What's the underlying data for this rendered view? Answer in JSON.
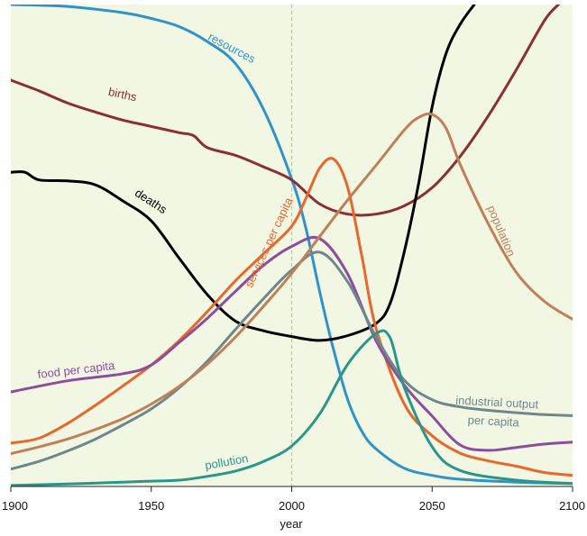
{
  "chart_data": {
    "type": "line",
    "xlabel": "year",
    "ylabel": "",
    "xlim": [
      1900,
      2100
    ],
    "ylim": [
      0,
      100
    ],
    "x_ticks": [
      "1900",
      "1950",
      "2000",
      "2050",
      "2100"
    ],
    "reference_line_x": 2000,
    "grid": false,
    "background_color": "#f2f7e4",
    "series": [
      {
        "name": "resources",
        "color": "#2f93c9",
        "points": [
          [
            1900,
            100
          ],
          [
            1920,
            99.6
          ],
          [
            1940,
            98.3
          ],
          [
            1950,
            97.1
          ],
          [
            1960,
            95.4
          ],
          [
            1970,
            92.3
          ],
          [
            1980,
            87.7
          ],
          [
            1990,
            78.2
          ],
          [
            2000,
            63.8
          ],
          [
            2005,
            53.7
          ],
          [
            2010,
            40.3
          ],
          [
            2015,
            28.2
          ],
          [
            2020,
            17.9
          ],
          [
            2025,
            11.4
          ],
          [
            2030,
            7.8
          ],
          [
            2040,
            3.8
          ],
          [
            2050,
            2.3
          ],
          [
            2060,
            1.5
          ],
          [
            2080,
            0.9
          ],
          [
            2100,
            0.6
          ]
        ]
      },
      {
        "name": "births",
        "color": "#8b2e35",
        "points": [
          [
            1900,
            84.3
          ],
          [
            1910,
            82.1
          ],
          [
            1920,
            79.6
          ],
          [
            1930,
            77.7
          ],
          [
            1940,
            76.0
          ],
          [
            1950,
            74.7
          ],
          [
            1960,
            73.4
          ],
          [
            1965,
            72.8
          ],
          [
            1970,
            70.3
          ],
          [
            1980,
            68.7
          ],
          [
            1990,
            66.3
          ],
          [
            2000,
            63.6
          ],
          [
            2010,
            58.6
          ],
          [
            2020,
            56.5
          ],
          [
            2030,
            56.5
          ],
          [
            2040,
            58.2
          ],
          [
            2050,
            62.0
          ],
          [
            2060,
            68.5
          ],
          [
            2070,
            76.9
          ],
          [
            2080,
            86.5
          ],
          [
            2090,
            96.7
          ],
          [
            2095,
            100
          ]
        ]
      },
      {
        "name": "deaths",
        "color": "#000000",
        "points": [
          [
            1900,
            65.2
          ],
          [
            1905,
            65.2
          ],
          [
            1910,
            63.6
          ],
          [
            1920,
            63.4
          ],
          [
            1930,
            62.6
          ],
          [
            1940,
            59.2
          ],
          [
            1950,
            55.1
          ],
          [
            1960,
            47.3
          ],
          [
            1970,
            39.8
          ],
          [
            1980,
            34.3
          ],
          [
            1990,
            32.3
          ],
          [
            2000,
            31.1
          ],
          [
            2010,
            30.3
          ],
          [
            2020,
            31.3
          ],
          [
            2030,
            33.8
          ],
          [
            2035,
            37.9
          ],
          [
            2040,
            48.5
          ],
          [
            2045,
            62.3
          ],
          [
            2050,
            78.8
          ],
          [
            2055,
            89.9
          ],
          [
            2060,
            95.9
          ],
          [
            2065,
            100
          ]
        ]
      },
      {
        "name": "services per capita",
        "color": "#e8672a",
        "points": [
          [
            1900,
            9.0
          ],
          [
            1910,
            10.0
          ],
          [
            1920,
            13.0
          ],
          [
            1930,
            16.8
          ],
          [
            1940,
            20.9
          ],
          [
            1950,
            25.2
          ],
          [
            1960,
            30.3
          ],
          [
            1970,
            36.3
          ],
          [
            1980,
            42.7
          ],
          [
            1990,
            48.3
          ],
          [
            2000,
            54.0
          ],
          [
            2005,
            59.7
          ],
          [
            2010,
            66.1
          ],
          [
            2015,
            67.9
          ],
          [
            2020,
            61.9
          ],
          [
            2025,
            47.7
          ],
          [
            2030,
            32.9
          ],
          [
            2040,
            17.2
          ],
          [
            2050,
            10.5
          ],
          [
            2060,
            6.9
          ],
          [
            2070,
            5.3
          ],
          [
            2080,
            4.2
          ],
          [
            2090,
            2.9
          ],
          [
            2100,
            2.3
          ]
        ]
      },
      {
        "name": "food per capita",
        "color": "#8d4d9e",
        "points": [
          [
            1900,
            19.6
          ],
          [
            1920,
            21.9
          ],
          [
            1940,
            23.4
          ],
          [
            1950,
            25.2
          ],
          [
            1960,
            29.9
          ],
          [
            1970,
            34.9
          ],
          [
            1980,
            40.5
          ],
          [
            1990,
            45.9
          ],
          [
            2000,
            49.8
          ],
          [
            2010,
            51.4
          ],
          [
            2020,
            44.0
          ],
          [
            2030,
            30.3
          ],
          [
            2040,
            21.1
          ],
          [
            2050,
            14.6
          ],
          [
            2060,
            8.6
          ],
          [
            2070,
            7.5
          ],
          [
            2080,
            8.1
          ],
          [
            2090,
            8.8
          ],
          [
            2100,
            9.2
          ]
        ]
      },
      {
        "name": "industrial output per capita",
        "color": "#6f878b",
        "points": [
          [
            1900,
            3.6
          ],
          [
            1910,
            5.2
          ],
          [
            1920,
            7.3
          ],
          [
            1930,
            9.8
          ],
          [
            1940,
            12.8
          ],
          [
            1950,
            16.1
          ],
          [
            1960,
            20.5
          ],
          [
            1970,
            26.0
          ],
          [
            1980,
            32.6
          ],
          [
            1990,
            39.0
          ],
          [
            2000,
            44.9
          ],
          [
            2010,
            48.6
          ],
          [
            2020,
            42.4
          ],
          [
            2030,
            31.1
          ],
          [
            2040,
            22.1
          ],
          [
            2050,
            18.0
          ],
          [
            2060,
            16.5
          ],
          [
            2070,
            15.8
          ],
          [
            2080,
            15.3
          ],
          [
            2090,
            14.9
          ],
          [
            2100,
            14.7
          ]
        ]
      },
      {
        "name": "population",
        "color": "#c07f57",
        "points": [
          [
            1900,
            6.8
          ],
          [
            1910,
            8.2
          ],
          [
            1920,
            9.8
          ],
          [
            1930,
            11.8
          ],
          [
            1940,
            14.1
          ],
          [
            1950,
            17.1
          ],
          [
            1960,
            20.8
          ],
          [
            1970,
            25.4
          ],
          [
            1980,
            31.0
          ],
          [
            1990,
            37.4
          ],
          [
            2000,
            44.2
          ],
          [
            2010,
            51.9
          ],
          [
            2020,
            59.5
          ],
          [
            2030,
            66.6
          ],
          [
            2040,
            73.9
          ],
          [
            2045,
            76.5
          ],
          [
            2050,
            77.2
          ],
          [
            2055,
            74.3
          ],
          [
            2060,
            66.8
          ],
          [
            2070,
            54.5
          ],
          [
            2080,
            44.4
          ],
          [
            2090,
            38.4
          ],
          [
            2100,
            34.7
          ]
        ]
      },
      {
        "name": "pollution",
        "color": "#2a9589",
        "points": [
          [
            1900,
            0.2
          ],
          [
            1920,
            0.5
          ],
          [
            1940,
            0.9
          ],
          [
            1950,
            1.1
          ],
          [
            1960,
            1.3
          ],
          [
            1970,
            2.1
          ],
          [
            1980,
            3.2
          ],
          [
            1990,
            5.2
          ],
          [
            2000,
            8.4
          ],
          [
            2010,
            15.1
          ],
          [
            2020,
            25.4
          ],
          [
            2030,
            31.7
          ],
          [
            2035,
            30.9
          ],
          [
            2040,
            20.7
          ],
          [
            2050,
            8.2
          ],
          [
            2060,
            3.3
          ],
          [
            2080,
            1.3
          ],
          [
            2100,
            0.6
          ]
        ]
      }
    ],
    "series_labels": [
      {
        "series": "resources",
        "text": "resources"
      },
      {
        "series": "births",
        "text": "births"
      },
      {
        "series": "deaths",
        "text": "deaths"
      },
      {
        "series": "services per capita",
        "text": "services per capita"
      },
      {
        "series": "food per capita",
        "text": "food per capita"
      },
      {
        "series": "industrial output per capita",
        "text": "industrial output",
        "text2": "per capita"
      },
      {
        "series": "population",
        "text": "population"
      },
      {
        "series": "pollution",
        "text": "pollution"
      }
    ]
  }
}
